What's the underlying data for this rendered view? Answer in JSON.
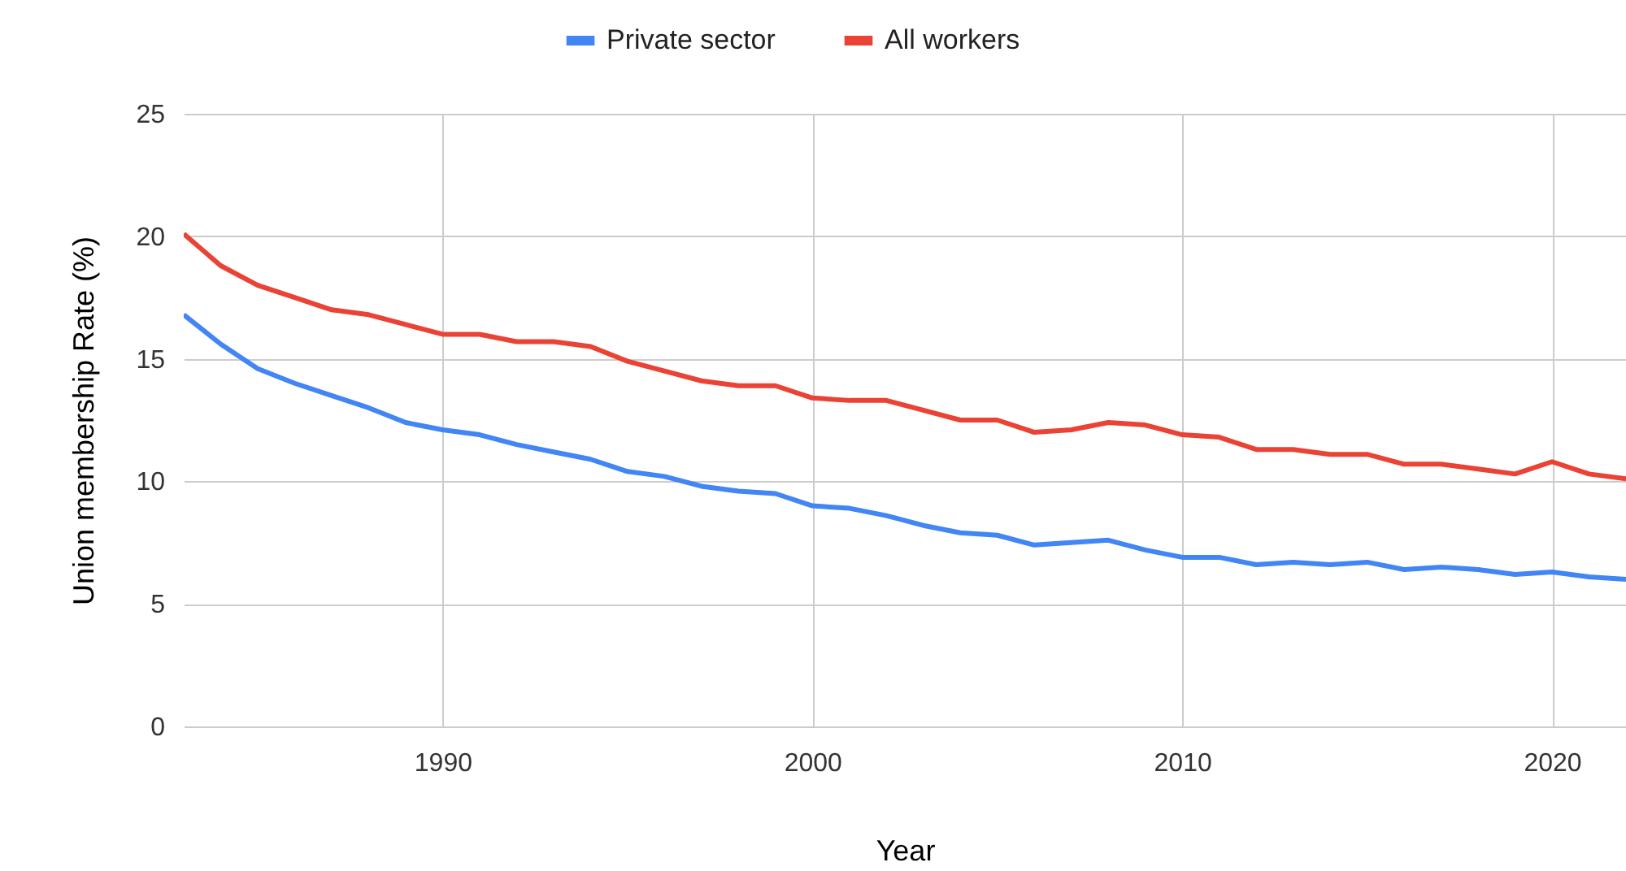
{
  "chart_data": {
    "type": "line",
    "xlabel": "Year",
    "ylabel": "Union membership Rate (%)",
    "x": [
      1983,
      1984,
      1985,
      1986,
      1987,
      1988,
      1989,
      1990,
      1991,
      1992,
      1993,
      1994,
      1995,
      1996,
      1997,
      1998,
      1999,
      2000,
      2001,
      2002,
      2003,
      2004,
      2005,
      2006,
      2007,
      2008,
      2009,
      2010,
      2011,
      2012,
      2013,
      2014,
      2015,
      2016,
      2017,
      2018,
      2019,
      2020,
      2021,
      2022
    ],
    "series": [
      {
        "name": "Private sector",
        "color": "#4285f4",
        "values": [
          16.8,
          15.6,
          14.6,
          14.0,
          13.5,
          13.0,
          12.4,
          12.1,
          11.9,
          11.5,
          11.2,
          10.9,
          10.4,
          10.2,
          9.8,
          9.6,
          9.5,
          9.0,
          8.9,
          8.6,
          8.2,
          7.9,
          7.8,
          7.4,
          7.5,
          7.6,
          7.2,
          6.9,
          6.9,
          6.6,
          6.7,
          6.6,
          6.7,
          6.4,
          6.5,
          6.4,
          6.2,
          6.3,
          6.1,
          6.0
        ]
      },
      {
        "name": "All workers",
        "color": "#ea4335",
        "values": [
          20.1,
          18.8,
          18.0,
          17.5,
          17.0,
          16.8,
          16.4,
          16.0,
          16.0,
          15.7,
          15.7,
          15.5,
          14.9,
          14.5,
          14.1,
          13.9,
          13.9,
          13.4,
          13.3,
          13.3,
          12.9,
          12.5,
          12.5,
          12.0,
          12.1,
          12.4,
          12.3,
          11.9,
          11.8,
          11.3,
          11.3,
          11.1,
          11.1,
          10.7,
          10.7,
          10.5,
          10.3,
          10.8,
          10.3,
          10.1
        ]
      }
    ],
    "xlim": [
      1983,
      2022
    ],
    "xticks": [
      1990,
      2000,
      2010,
      2020
    ],
    "ylim": [
      0,
      25
    ],
    "yticks": [
      0,
      5,
      10,
      15,
      20,
      25
    ],
    "grid": true,
    "legend": "top",
    "marker": "none",
    "line_style": "solid"
  }
}
